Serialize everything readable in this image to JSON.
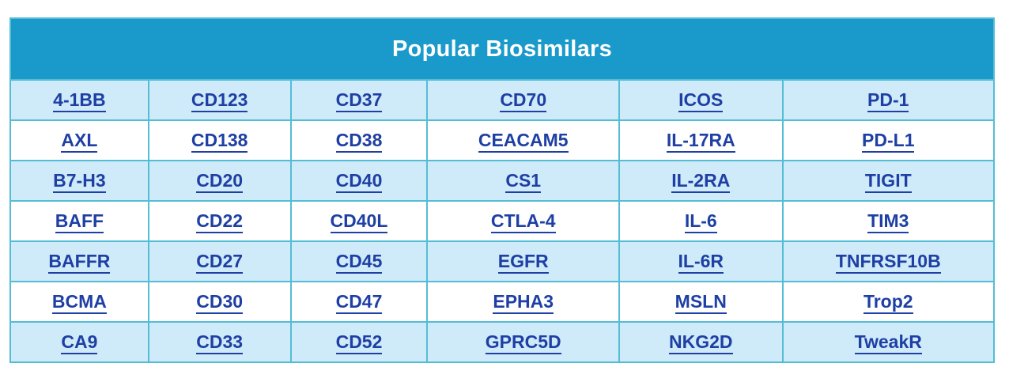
{
  "table": {
    "title": "Popular Biosimilars",
    "columns": 6,
    "rows": [
      [
        "4-1BB",
        "CD123",
        "CD37",
        "CD70",
        "ICOS",
        "PD-1"
      ],
      [
        "AXL",
        "CD138",
        "CD38",
        "CEACAM5",
        "IL-17RA",
        "PD-L1"
      ],
      [
        "B7-H3",
        "CD20",
        "CD40",
        "CS1",
        "IL-2RA",
        "TIGIT"
      ],
      [
        "BAFF",
        "CD22",
        "CD40L",
        "CTLA-4",
        "IL-6",
        "TIM3"
      ],
      [
        "BAFFR",
        "CD27",
        "CD45",
        "EGFR",
        "IL-6R",
        "TNFRSF10B"
      ],
      [
        "BCMA",
        "CD30",
        "CD47",
        "EPHA3",
        "MSLN",
        "Trop2"
      ],
      [
        "CA9",
        "CD33",
        "CD52",
        "GPRC5D",
        "NKG2D",
        "TweakR"
      ]
    ]
  },
  "colors": {
    "header_bg": "#1a9aca",
    "header_text": "#ffffff",
    "row_alt_bg": "#cfeaf8",
    "row_bg": "#ffffff",
    "border": "#54bdd6",
    "link": "#1e3fa4",
    "page_bg": "#ffffff"
  }
}
